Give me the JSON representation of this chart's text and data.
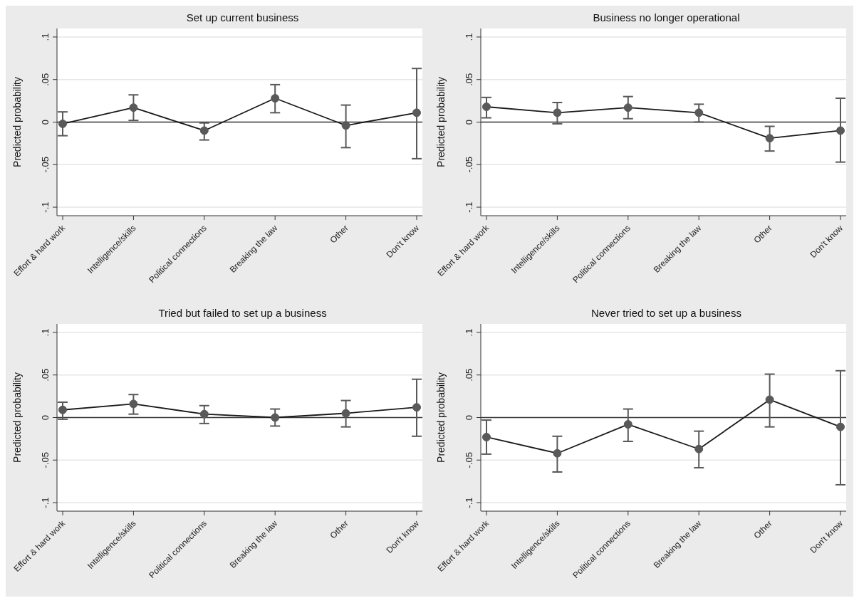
{
  "chart_data": [
    {
      "type": "line",
      "title": "Set up current business",
      "ylabel": "Predicted probability",
      "categories": [
        "Effort & hard work",
        "Intelligence/skills",
        "Political connections",
        "Breaking the law",
        "Other",
        "Don't know"
      ],
      "series": [
        {
          "color": "#595959",
          "values": [
            -0.002,
            0.017,
            -0.01,
            0.028,
            -0.004,
            0.011
          ],
          "errors": [
            [
              -0.016,
              0.012
            ],
            [
              0.002,
              0.032
            ],
            [
              -0.021,
              -0.001
            ],
            [
              0.011,
              0.044
            ],
            [
              -0.03,
              0.02
            ],
            [
              -0.043,
              0.063
            ]
          ]
        }
      ],
      "ylim": [
        -0.11,
        0.11
      ],
      "yticks": [
        {
          "value": -0.1,
          "label": "-.1"
        },
        {
          "value": -0.05,
          "label": "-.05"
        },
        {
          "value": 0,
          "label": "0"
        },
        {
          "value": 0.05,
          "label": ".05"
        },
        {
          "value": 0.1,
          "label": ".1"
        }
      ],
      "grid": "y",
      "marker": "circle",
      "line_style": "solid",
      "legend": false,
      "ref_lines": [
        {
          "axis": "y",
          "value": 0,
          "color": "#3a3a3a"
        }
      ]
    },
    {
      "type": "line",
      "title": "Business no longer operational",
      "ylabel": "Predicted probability",
      "categories": [
        "Effort & hard work",
        "Intelligence/skills",
        "Political connections",
        "Breaking the law",
        "Other",
        "Don't know"
      ],
      "series": [
        {
          "color": "#595959",
          "values": [
            0.018,
            0.011,
            0.017,
            0.011,
            -0.019,
            -0.01
          ],
          "errors": [
            [
              0.005,
              0.029
            ],
            [
              -0.002,
              0.023
            ],
            [
              0.004,
              0.03
            ],
            [
              0,
              0.021
            ],
            [
              -0.034,
              -0.005
            ],
            [
              -0.047,
              0.028
            ]
          ]
        }
      ],
      "ylim": [
        -0.11,
        0.11
      ],
      "yticks": [
        {
          "value": -0.1,
          "label": "-.1"
        },
        {
          "value": -0.05,
          "label": "-.05"
        },
        {
          "value": 0,
          "label": "0"
        },
        {
          "value": 0.05,
          "label": ".05"
        },
        {
          "value": 0.1,
          "label": ".1"
        }
      ],
      "grid": "y",
      "marker": "circle",
      "line_style": "solid",
      "legend": false,
      "ref_lines": [
        {
          "axis": "y",
          "value": 0,
          "color": "#3a3a3a"
        }
      ]
    },
    {
      "type": "line",
      "title": "Tried but failed to set up a business",
      "ylabel": "Predicted probability",
      "categories": [
        "Effort & hard work",
        "Intelligence/skills",
        "Political connections",
        "Breaking the law",
        "Other",
        "Don't know"
      ],
      "series": [
        {
          "color": "#595959",
          "values": [
            0.009,
            0.016,
            0.004,
            0,
            0.005,
            0.012
          ],
          "errors": [
            [
              -0.002,
              0.018
            ],
            [
              0.004,
              0.027
            ],
            [
              -0.007,
              0.014
            ],
            [
              -0.01,
              0.01
            ],
            [
              -0.011,
              0.02
            ],
            [
              -0.022,
              0.045
            ]
          ]
        }
      ],
      "ylim": [
        -0.11,
        0.11
      ],
      "yticks": [
        {
          "value": -0.1,
          "label": "-.1"
        },
        {
          "value": -0.05,
          "label": "-.05"
        },
        {
          "value": 0,
          "label": "0"
        },
        {
          "value": 0.05,
          "label": ".05"
        },
        {
          "value": 0.1,
          "label": ".1"
        }
      ],
      "grid": "y",
      "marker": "circle",
      "line_style": "solid",
      "legend": false,
      "ref_lines": [
        {
          "axis": "y",
          "value": 0,
          "color": "#3a3a3a"
        }
      ]
    },
    {
      "type": "line",
      "title": "Never tried to set up a business",
      "ylabel": "Predicted probability",
      "categories": [
        "Effort & hard work",
        "Intelligence/skills",
        "Political connections",
        "Breaking the law",
        "Other",
        "Don't know"
      ],
      "series": [
        {
          "color": "#595959",
          "values": [
            -0.023,
            -0.042,
            -0.008,
            -0.037,
            0.021,
            -0.011
          ],
          "errors": [
            [
              -0.043,
              -0.003
            ],
            [
              -0.064,
              -0.022
            ],
            [
              -0.028,
              0.01
            ],
            [
              -0.059,
              -0.016
            ],
            [
              -0.011,
              0.051
            ],
            [
              -0.079,
              0.055
            ]
          ]
        }
      ],
      "ylim": [
        -0.11,
        0.11
      ],
      "yticks": [
        {
          "value": -0.1,
          "label": "-.1"
        },
        {
          "value": -0.05,
          "label": "-.05"
        },
        {
          "value": 0,
          "label": "0"
        },
        {
          "value": 0.05,
          "label": ".05"
        },
        {
          "value": 0.1,
          "label": ".1"
        }
      ],
      "grid": "y",
      "marker": "circle",
      "line_style": "solid",
      "legend": false,
      "ref_lines": [
        {
          "axis": "y",
          "value": 0,
          "color": "#3a3a3a"
        }
      ]
    }
  ]
}
